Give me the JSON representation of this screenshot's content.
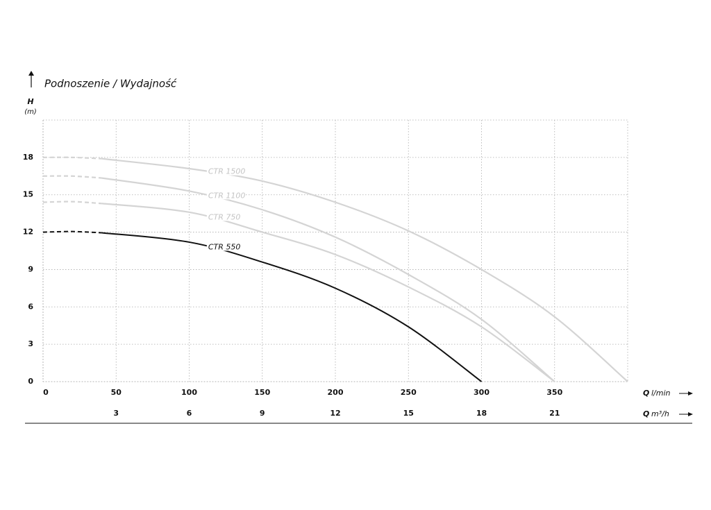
{
  "chart_data": {
    "type": "line",
    "title": "Podnoszenie / Wydajność",
    "y_label": "H",
    "y_unit": "(m)",
    "x_label": "Q",
    "x_unit": "l/min",
    "x2_label": "Q",
    "x2_unit": "m³/h",
    "xlim": [
      0,
      400
    ],
    "xticks": [
      0,
      50,
      100,
      150,
      200,
      250,
      300,
      350
    ],
    "x2lim": [
      0,
      24
    ],
    "x2ticks": [
      3,
      6,
      9,
      12,
      15,
      18,
      21
    ],
    "ylim": [
      0,
      21
    ],
    "yticks": [
      0,
      3,
      6,
      9,
      12,
      15,
      18
    ],
    "grid": true,
    "series": [
      {
        "name": "CTR 1500",
        "color": "#d4d4d4",
        "label_color": "#c4c4c4",
        "dashed_until": 40,
        "x": [
          0,
          20,
          40,
          100,
          150,
          200,
          250,
          300,
          350,
          400
        ],
        "values": [
          18,
          18,
          17.9,
          17.1,
          16.1,
          14.4,
          12.1,
          9.0,
          5.2,
          0
        ]
      },
      {
        "name": "CTR 1100",
        "color": "#d4d4d4",
        "label_color": "#c4c4c4",
        "dashed_until": 40,
        "x": [
          0,
          20,
          40,
          100,
          150,
          200,
          250,
          300,
          350
        ],
        "values": [
          16.5,
          16.5,
          16.35,
          15.3,
          13.8,
          11.6,
          8.6,
          5.0,
          0
        ]
      },
      {
        "name": "CTR 750",
        "color": "#d4d4d4",
        "label_color": "#c4c4c4",
        "dashed_until": 40,
        "x": [
          0,
          20,
          40,
          100,
          150,
          200,
          250,
          300,
          350
        ],
        "values": [
          14.4,
          14.45,
          14.3,
          13.6,
          12.0,
          10.2,
          7.6,
          4.4,
          0
        ]
      },
      {
        "name": "CTR 550",
        "color": "#111111",
        "label_color": "#111111",
        "dashed_until": 40,
        "x": [
          0,
          20,
          40,
          100,
          150,
          200,
          250,
          300
        ],
        "values": [
          12,
          12.05,
          11.95,
          11.2,
          9.6,
          7.5,
          4.4,
          0
        ]
      }
    ]
  }
}
